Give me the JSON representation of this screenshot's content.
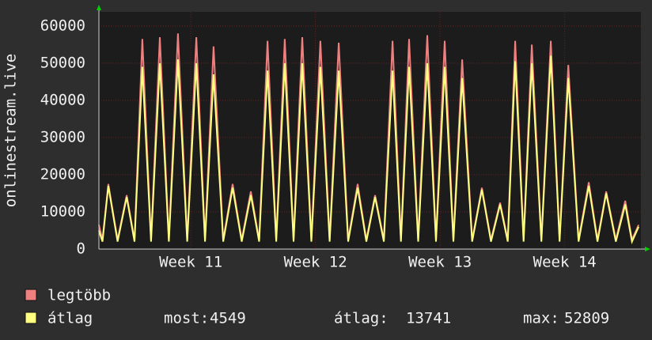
{
  "chart_data": {
    "type": "line",
    "y_label": "onlinestream.live",
    "x": [
      0,
      0.2,
      0.53,
      1.05,
      1.56,
      2.0,
      2.44,
      2.93,
      3.42,
      3.93,
      4.44,
      4.96,
      5.47,
      5.96,
      6.44,
      6.98,
      7.51,
      8.02,
      8.53,
      9.0,
      9.47,
      9.96,
      10.44,
      10.93,
      11.42,
      11.93,
      12.44,
      12.96,
      13.47,
      14.0,
      14.53,
      15.02,
      15.51,
      16.0,
      16.49,
      16.96,
      17.42,
      17.93,
      18.44,
      18.93,
      19.42,
      19.91,
      20.4,
      20.96,
      21.51,
      22.02,
      22.53,
      22.96,
      23.38,
      23.85,
      24.31,
      24.85,
      25.38,
      25.87,
      26.36,
      26.94,
      27.51,
      28.0,
      28.49,
      29.03,
      29.56,
      29.94,
      30.31
    ],
    "series": [
      {
        "name": "legtöbb",
        "color": "#f07f7f",
        "values": [
          6500,
          2500,
          17500,
          2500,
          14500,
          2500,
          56500,
          2500,
          57000,
          2500,
          58000,
          2500,
          57000,
          2500,
          54500,
          2500,
          17500,
          2500,
          15500,
          2500,
          56000,
          2500,
          56500,
          2500,
          57000,
          2500,
          56000,
          2500,
          55500,
          2500,
          17500,
          2500,
          14500,
          2500,
          56000,
          2500,
          56500,
          2500,
          57500,
          2500,
          56000,
          2500,
          51000,
          2500,
          16500,
          2500,
          12500,
          2500,
          56000,
          2500,
          55000,
          2500,
          56000,
          2500,
          49500,
          2500,
          18000,
          2500,
          15500,
          2500,
          13000,
          2500,
          6500
        ]
      },
      {
        "name": "átlag",
        "color": "#ffff80",
        "values": [
          5000,
          2000,
          17000,
          2000,
          14000,
          2000,
          49000,
          2000,
          50000,
          2000,
          51000,
          2000,
          50000,
          2000,
          47000,
          2000,
          16500,
          2000,
          14500,
          2000,
          48000,
          2000,
          50000,
          2000,
          50000,
          2000,
          49000,
          2000,
          48000,
          2000,
          16500,
          2000,
          14000,
          2000,
          48000,
          2000,
          49000,
          2000,
          50000,
          2000,
          49000,
          2000,
          46000,
          2000,
          16000,
          2000,
          12000,
          2000,
          50500,
          2000,
          50000,
          2000,
          52000,
          2000,
          46000,
          2000,
          17000,
          2000,
          15000,
          2000,
          12000,
          2000,
          6000
        ]
      }
    ],
    "xlim": [
      0,
      30.44
    ],
    "xticks": [
      {
        "value": 5.16,
        "label": "Week 11"
      },
      {
        "value": 12.16,
        "label": "Week 12"
      },
      {
        "value": 19.16,
        "label": "Week 13"
      },
      {
        "value": 26.16,
        "label": "Week 14"
      }
    ],
    "ylim": [
      0,
      63800
    ],
    "yticks": [
      0,
      10000,
      20000,
      30000,
      40000,
      50000,
      60000
    ],
    "grid": true,
    "stats": [
      {
        "label": "most:",
        "value": 4549
      },
      {
        "label": "átlag:",
        "value": 13741
      },
      {
        "label": "max:",
        "value": 52809
      }
    ]
  }
}
